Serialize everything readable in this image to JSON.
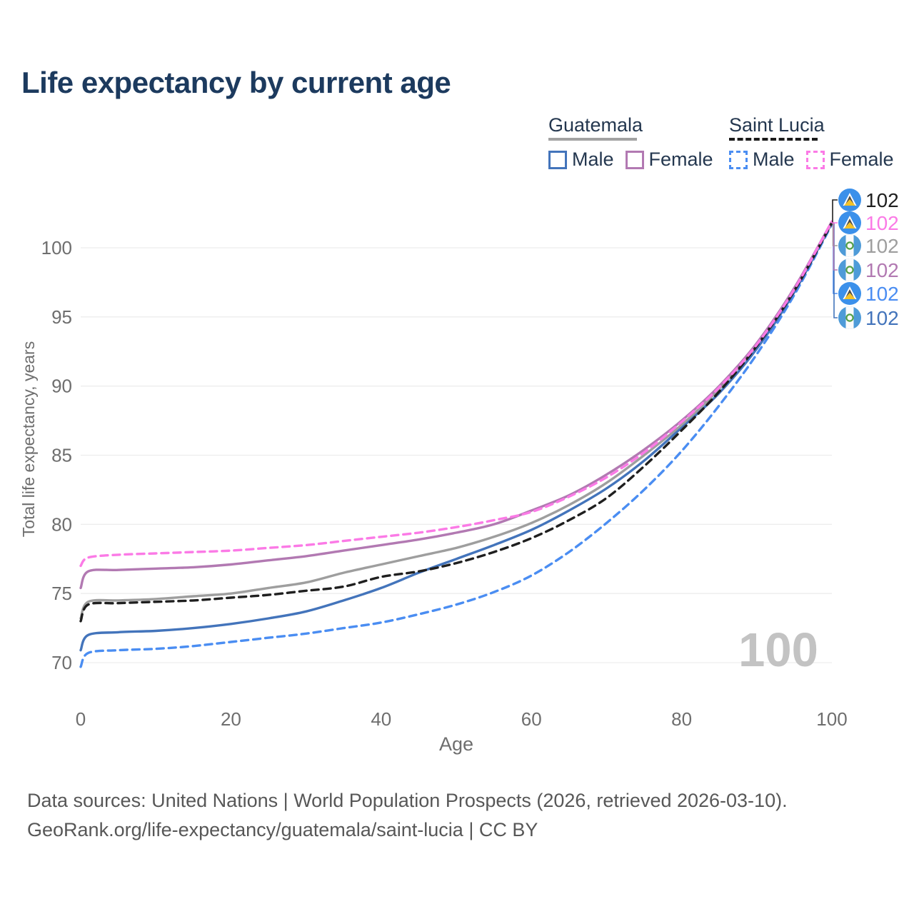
{
  "title": "Life expectancy by current age",
  "accent_color": "#1c3a5e",
  "legend": {
    "groups": [
      {
        "name": "Guatemala",
        "line_style": "solid",
        "line_color": "#a2a2a2",
        "items": [
          {
            "label": "Male",
            "color": "#4374bb",
            "dashed": false
          },
          {
            "label": "Female",
            "color": "#b279b2",
            "dashed": false
          }
        ]
      },
      {
        "name": "Saint Lucia",
        "line_style": "dashed",
        "line_color": "#1b1b1b",
        "items": [
          {
            "label": "Male",
            "color": "#4a8df2",
            "dashed": true
          },
          {
            "label": "Female",
            "color": "#fb7ae6",
            "dashed": true
          }
        ]
      }
    ]
  },
  "watermark": "100",
  "footer": {
    "line1": "Data sources: United Nations | World Population Prospects (2026, retrieved 2026-03-10).",
    "line2": "GeoRank.org/life-expectancy/guatemala/saint-lucia | CC BY"
  },
  "flags": {
    "saint-lucia": {
      "circle": "#3b90ea",
      "triangle_white": "#ffffff",
      "triangle_dark": "#4a4a4a",
      "triangle_yellow": "#f3c22a"
    },
    "guatemala": {
      "circle": "#4e9bd8",
      "stripe": "#fbfbfb",
      "emblem": "#55a047"
    }
  },
  "chart_data": {
    "type": "line",
    "title": "Life expectancy by current age",
    "xlabel": "Age",
    "ylabel": "Total life expectancy, years",
    "xlim": [
      0,
      100
    ],
    "ylim": [
      68,
      103
    ],
    "xticks": [
      0,
      20,
      40,
      60,
      80,
      100
    ],
    "yticks": [
      70,
      75,
      80,
      85,
      90,
      95,
      100
    ],
    "grid": "horizontal",
    "legend_position": "top-right",
    "ages": [
      0,
      1,
      5,
      10,
      15,
      20,
      25,
      30,
      35,
      40,
      45,
      50,
      55,
      60,
      65,
      70,
      75,
      80,
      85,
      90,
      95,
      100
    ],
    "series": [
      {
        "key": "saint_lucia_male",
        "country": "Saint Lucia",
        "sex": "Male",
        "color": "#4a8df2",
        "dashed": true,
        "flag": "saint-lucia",
        "label_row": 4,
        "end_label": "102",
        "values": [
          69.7,
          70.7,
          70.9,
          71.0,
          71.2,
          71.5,
          71.8,
          72.1,
          72.5,
          72.9,
          73.5,
          74.2,
          75.1,
          76.3,
          78.0,
          80.1,
          82.5,
          85.3,
          88.6,
          92.3,
          96.6,
          101.7
        ]
      },
      {
        "key": "guatemala_male",
        "country": "Guatemala",
        "sex": "Male",
        "color": "#4374bb",
        "dashed": false,
        "flag": "guatemala",
        "label_row": 5,
        "end_label": "102",
        "values": [
          70.9,
          72.0,
          72.2,
          72.3,
          72.5,
          72.8,
          73.2,
          73.7,
          74.5,
          75.4,
          76.5,
          77.5,
          78.5,
          79.6,
          81.0,
          82.6,
          84.6,
          87.0,
          89.5,
          92.7,
          96.8,
          101.8
        ]
      },
      {
        "key": "guatemala_total",
        "country": "Guatemala",
        "sex": "Both",
        "color": "#9e9e9e",
        "dashed": false,
        "flag": "guatemala",
        "label_row": 2,
        "end_label": "102",
        "values": [
          73.2,
          74.4,
          74.5,
          74.6,
          74.8,
          75.0,
          75.4,
          75.8,
          76.5,
          77.1,
          77.7,
          78.3,
          79.1,
          80.1,
          81.4,
          83.0,
          85.0,
          87.2,
          89.8,
          93.0,
          97.0,
          101.8
        ]
      },
      {
        "key": "guatemala_female",
        "country": "Guatemala",
        "sex": "Female",
        "color": "#b279b2",
        "dashed": false,
        "flag": "guatemala",
        "label_row": 3,
        "end_label": "102",
        "values": [
          75.4,
          76.6,
          76.7,
          76.8,
          76.9,
          77.1,
          77.4,
          77.7,
          78.1,
          78.5,
          78.9,
          79.4,
          80.0,
          81.0,
          82.1,
          83.6,
          85.4,
          87.5,
          90.0,
          93.1,
          97.1,
          101.9
        ]
      },
      {
        "key": "saint_lucia_total",
        "country": "Saint Lucia",
        "sex": "Both",
        "color": "#1f1f1f",
        "dashed": true,
        "flag": "saint-lucia",
        "label_row": 0,
        "end_label": "102",
        "values": [
          73.0,
          74.2,
          74.3,
          74.4,
          74.5,
          74.7,
          74.9,
          75.2,
          75.5,
          76.2,
          76.6,
          77.2,
          78.0,
          79.0,
          80.3,
          81.9,
          84.2,
          86.8,
          89.6,
          92.9,
          96.9,
          101.8
        ]
      },
      {
        "key": "saint_lucia_female",
        "country": "Saint Lucia",
        "sex": "Female",
        "color": "#fb7ae6",
        "dashed": true,
        "flag": "saint-lucia",
        "label_row": 1,
        "end_label": "102",
        "values": [
          77.0,
          77.6,
          77.8,
          77.9,
          78.0,
          78.1,
          78.3,
          78.5,
          78.8,
          79.1,
          79.4,
          79.8,
          80.3,
          80.9,
          82.0,
          83.4,
          85.2,
          87.4,
          89.9,
          93.0,
          97.0,
          101.9
        ]
      }
    ]
  }
}
